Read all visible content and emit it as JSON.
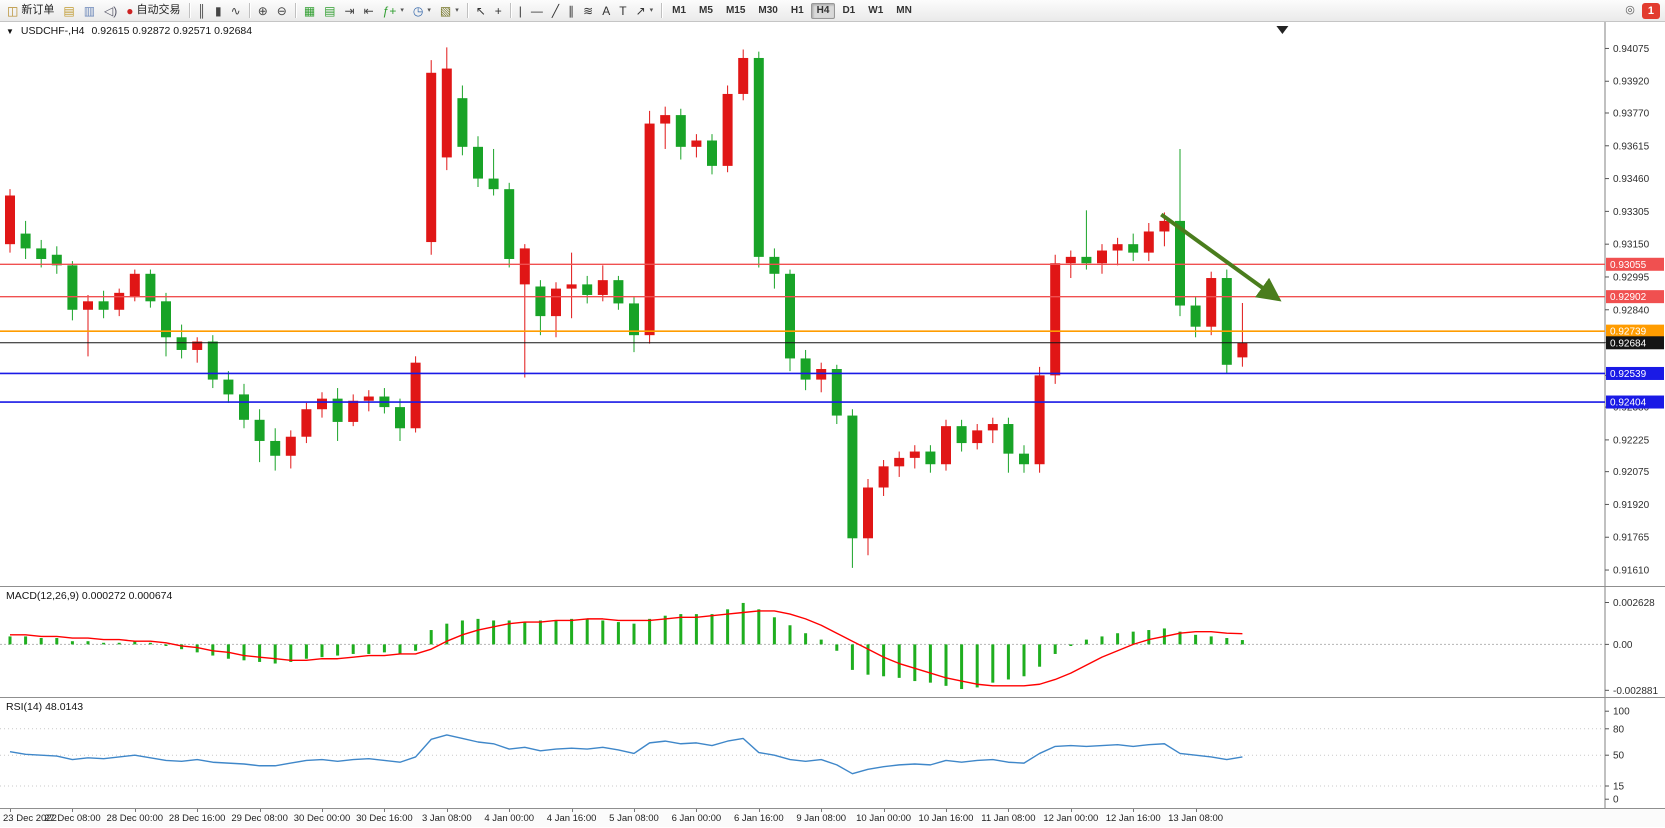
{
  "toolbar": {
    "items": [
      {
        "name": "new-order-button",
        "label": "新订单",
        "glyph": "◫",
        "color": "#b58b2a"
      },
      {
        "name": "new-chart-icon",
        "glyph": "▤",
        "color": "#c09a30"
      },
      {
        "name": "profiles-icon",
        "glyph": "▥",
        "color": "#6a86b8"
      },
      {
        "name": "sound-icon",
        "glyph": "◁)",
        "color": "#556"
      },
      {
        "name": "autotrading-button",
        "label": "自动交易",
        "glyph": "●",
        "color": "#cc2222"
      },
      {
        "type": "sep"
      },
      {
        "name": "bar-chart-button",
        "glyph": "║",
        "color": "#444"
      },
      {
        "name": "candle-chart-button",
        "glyph": "▮",
        "color": "#444"
      },
      {
        "name": "line-chart-button",
        "glyph": "∿",
        "color": "#444"
      },
      {
        "type": "sep"
      },
      {
        "name": "zoom-in-button",
        "glyph": "⊕",
        "color": "#444"
      },
      {
        "name": "zoom-out-button",
        "glyph": "⊖",
        "color": "#444"
      },
      {
        "type": "sep"
      },
      {
        "name": "tile-windows-button",
        "glyph": "▦",
        "color": "#2f9e2f"
      },
      {
        "name": "cascade-windows-button",
        "glyph": "▤",
        "color": "#2f9e2f"
      },
      {
        "name": "auto-scroll-button",
        "glyph": "⇥",
        "color": "#444"
      },
      {
        "name": "chart-shift-button",
        "glyph": "⇤",
        "color": "#444"
      },
      {
        "name": "indicators-button",
        "glyph": "ƒ+",
        "color": "#2f9e2f",
        "dropdown": true
      },
      {
        "name": "periods-button",
        "glyph": "◷",
        "color": "#3366aa",
        "dropdown": true
      },
      {
        "name": "templates-button",
        "glyph": "▧",
        "color": "#77772a",
        "dropdown": true
      },
      {
        "type": "sep"
      },
      {
        "name": "cursor-button",
        "glyph": "↖",
        "color": "#333"
      },
      {
        "name": "crosshair-button",
        "glyph": "+",
        "color": "#333"
      },
      {
        "type": "sep"
      },
      {
        "name": "vertical-line-button",
        "glyph": "|",
        "color": "#333"
      },
      {
        "name": "horizontal-line-button",
        "glyph": "—",
        "color": "#333"
      },
      {
        "name": "trendline-button",
        "glyph": "╱",
        "color": "#333"
      },
      {
        "name": "channel-button",
        "glyph": "∥",
        "color": "#333"
      },
      {
        "name": "fibonacci-button",
        "glyph": "≋",
        "color": "#333"
      },
      {
        "name": "text-button",
        "glyph": "A",
        "color": "#333"
      },
      {
        "name": "label-button",
        "glyph": "T",
        "color": "#333"
      },
      {
        "name": "arrows-button",
        "glyph": "↗",
        "color": "#333",
        "dropdown": true
      },
      {
        "type": "sep"
      }
    ],
    "timeframes": [
      "M1",
      "M5",
      "M15",
      "M30",
      "H1",
      "H4",
      "D1",
      "W1",
      "MN"
    ],
    "active_timeframe": "H4",
    "search_icon_glyph": "◎",
    "notification_count": "1"
  },
  "chart": {
    "symbol_label": "USDCHF-,H4",
    "ohlc_label": "0.92615 0.92872 0.92571 0.92684",
    "macd_label": "MACD(12,26,9) 0.000272 0.000674",
    "rsi_label": "RSI(14) 48.0143"
  },
  "chart_data": {
    "type": "candlestick",
    "symbol": "USDCHF-",
    "timeframe": "H4",
    "colors": {
      "up": "#e01616",
      "down": "#18a327",
      "macd_bar": "#1fae1f",
      "macd_signal": "#ff0000",
      "rsi_line": "#3f87c9"
    },
    "price_axis": {
      "ticks": [
        "0.94075",
        "0.93920",
        "0.93770",
        "0.93615",
        "0.93460",
        "0.93305",
        "0.93150",
        "0.92995",
        "0.92840",
        "0.92685",
        "0.92530",
        "0.92380",
        "0.92225",
        "0.92075",
        "0.91920",
        "0.91765",
        "0.91610"
      ]
    },
    "candles": [
      [
        0.9315,
        0.9341,
        0.9311,
        0.9338
      ],
      [
        0.932,
        0.9326,
        0.9308,
        0.9313
      ],
      [
        0.9313,
        0.9317,
        0.9304,
        0.9308
      ],
      [
        0.931,
        0.9314,
        0.9301,
        0.9305
      ],
      [
        0.9305,
        0.9307,
        0.9279,
        0.9284
      ],
      [
        0.9284,
        0.9291,
        0.9262,
        0.9288
      ],
      [
        0.9288,
        0.9293,
        0.928,
        0.9284
      ],
      [
        0.9284,
        0.9294,
        0.9281,
        0.9292
      ],
      [
        0.929,
        0.9303,
        0.9288,
        0.9301
      ],
      [
        0.9301,
        0.9303,
        0.9285,
        0.9288
      ],
      [
        0.9288,
        0.9292,
        0.9262,
        0.9271
      ],
      [
        0.9271,
        0.9277,
        0.9261,
        0.9265
      ],
      [
        0.9265,
        0.9271,
        0.9259,
        0.9269
      ],
      [
        0.9269,
        0.9272,
        0.9247,
        0.9251
      ],
      [
        0.9251,
        0.9255,
        0.924,
        0.9244
      ],
      [
        0.9244,
        0.9249,
        0.9228,
        0.9232
      ],
      [
        0.9232,
        0.9237,
        0.9212,
        0.9222
      ],
      [
        0.9222,
        0.9228,
        0.9208,
        0.9215
      ],
      [
        0.9215,
        0.9227,
        0.9209,
        0.9224
      ],
      [
        0.9224,
        0.924,
        0.9221,
        0.9237
      ],
      [
        0.9237,
        0.9245,
        0.9233,
        0.9242
      ],
      [
        0.9242,
        0.9247,
        0.9222,
        0.9231
      ],
      [
        0.9231,
        0.9244,
        0.9229,
        0.9241
      ],
      [
        0.9241,
        0.9246,
        0.9236,
        0.9243
      ],
      [
        0.9243,
        0.9247,
        0.9235,
        0.9238
      ],
      [
        0.9238,
        0.9242,
        0.9222,
        0.9228
      ],
      [
        0.9228,
        0.9262,
        0.9226,
        0.9259
      ],
      [
        0.9316,
        0.9402,
        0.931,
        0.9396
      ],
      [
        0.9356,
        0.9408,
        0.935,
        0.9398
      ],
      [
        0.9384,
        0.939,
        0.9357,
        0.9361
      ],
      [
        0.9361,
        0.9366,
        0.9342,
        0.9346
      ],
      [
        0.9346,
        0.936,
        0.9338,
        0.9341
      ],
      [
        0.9341,
        0.9344,
        0.9304,
        0.9308
      ],
      [
        0.9296,
        0.9315,
        0.9252,
        0.9313
      ],
      [
        0.9295,
        0.9298,
        0.9272,
        0.9281
      ],
      [
        0.9281,
        0.9297,
        0.9271,
        0.9294
      ],
      [
        0.9294,
        0.9311,
        0.928,
        0.9296
      ],
      [
        0.9296,
        0.93,
        0.9287,
        0.9291
      ],
      [
        0.9291,
        0.9305,
        0.9288,
        0.9298
      ],
      [
        0.9298,
        0.93,
        0.9284,
        0.9287
      ],
      [
        0.9287,
        0.929,
        0.9264,
        0.9272
      ],
      [
        0.9272,
        0.9378,
        0.9268,
        0.9372
      ],
      [
        0.9372,
        0.938,
        0.936,
        0.9376
      ],
      [
        0.9376,
        0.9379,
        0.9355,
        0.9361
      ],
      [
        0.9361,
        0.9367,
        0.9356,
        0.9364
      ],
      [
        0.9364,
        0.9367,
        0.9348,
        0.9352
      ],
      [
        0.9352,
        0.939,
        0.9349,
        0.9386
      ],
      [
        0.9386,
        0.9407,
        0.9383,
        0.9403
      ],
      [
        0.9403,
        0.9406,
        0.9304,
        0.9309
      ],
      [
        0.9309,
        0.9313,
        0.9294,
        0.9301
      ],
      [
        0.9301,
        0.9303,
        0.9255,
        0.9261
      ],
      [
        0.9261,
        0.9265,
        0.9246,
        0.9251
      ],
      [
        0.9251,
        0.9259,
        0.9245,
        0.9256
      ],
      [
        0.9256,
        0.9258,
        0.923,
        0.9234
      ],
      [
        0.9234,
        0.9237,
        0.9162,
        0.9176
      ],
      [
        0.9176,
        0.9204,
        0.9168,
        0.92
      ],
      [
        0.92,
        0.9213,
        0.9196,
        0.921
      ],
      [
        0.921,
        0.9217,
        0.9205,
        0.9214
      ],
      [
        0.9214,
        0.922,
        0.9209,
        0.9217
      ],
      [
        0.9217,
        0.922,
        0.9207,
        0.9211
      ],
      [
        0.9211,
        0.9232,
        0.9208,
        0.9229
      ],
      [
        0.9229,
        0.9232,
        0.9217,
        0.9221
      ],
      [
        0.9221,
        0.923,
        0.9218,
        0.9227
      ],
      [
        0.9227,
        0.9233,
        0.9221,
        0.923
      ],
      [
        0.923,
        0.9233,
        0.9207,
        0.9216
      ],
      [
        0.9216,
        0.922,
        0.9207,
        0.9211
      ],
      [
        0.9211,
        0.9257,
        0.9207,
        0.9253
      ],
      [
        0.9253,
        0.931,
        0.9249,
        0.9306
      ],
      [
        0.9306,
        0.9312,
        0.9299,
        0.9309
      ],
      [
        0.9309,
        0.9331,
        0.9303,
        0.9306
      ],
      [
        0.9306,
        0.9315,
        0.9301,
        0.9312
      ],
      [
        0.9312,
        0.9318,
        0.9305,
        0.9315
      ],
      [
        0.9315,
        0.932,
        0.9307,
        0.9311
      ],
      [
        0.9311,
        0.9325,
        0.9307,
        0.9321
      ],
      [
        0.9321,
        0.933,
        0.9314,
        0.9326
      ],
      [
        0.9326,
        0.936,
        0.9281,
        0.9286
      ],
      [
        0.9286,
        0.929,
        0.9271,
        0.9276
      ],
      [
        0.9276,
        0.9302,
        0.9272,
        0.9299
      ],
      [
        0.9299,
        0.9303,
        0.9254,
        0.9258
      ],
      [
        0.92615,
        0.92872,
        0.92571,
        0.92684
      ]
    ],
    "levels": [
      {
        "price": "0.93055",
        "value": 0.93055,
        "color": "#f05050",
        "width": 1.4
      },
      {
        "price": "0.92902",
        "value": 0.92902,
        "color": "#f05050",
        "width": 1.4
      },
      {
        "price": "0.92739",
        "value": 0.92739,
        "color": "#ff9c00",
        "width": 1.6
      },
      {
        "price": "0.92539",
        "value": 0.92539,
        "color": "#1a1ae6",
        "width": 1.6
      },
      {
        "price": "0.92404",
        "value": 0.92404,
        "color": "#1a1ae6",
        "width": 1.6
      }
    ],
    "current_price": {
      "price": "0.92684",
      "value": 0.92684,
      "color": "#151515"
    },
    "annotation_arrow": {
      "from_index": 73.8,
      "from_price": 0.9329,
      "to_index": 81.3,
      "to_price": 0.9289,
      "color": "#4a7d1d",
      "width": 4
    },
    "time_labels": [
      "23 Dec 2022",
      "27 Dec 08:00",
      "28 Dec 00:00",
      "28 Dec 16:00",
      "29 Dec 08:00",
      "30 Dec 00:00",
      "30 Dec 16:00",
      "3 Jan 08:00",
      "4 Jan 00:00",
      "4 Jan 16:00",
      "5 Jan 08:00",
      "6 Jan 00:00",
      "6 Jan 16:00",
      "9 Jan 08:00",
      "10 Jan 00:00",
      "10 Jan 16:00",
      "11 Jan 08:00",
      "12 Jan 00:00",
      "12 Jan 16:00",
      "13 Jan 08:00"
    ],
    "macd": {
      "histogram": [
        0.0005,
        0.0005,
        0.0004,
        0.0004,
        0.0002,
        0.0002,
        0.0001,
        0.0001,
        0.0002,
        0.0001,
        -0.0001,
        -0.0003,
        -0.0005,
        -0.0007,
        -0.0009,
        -0.001,
        -0.0011,
        -0.0012,
        -0.0011,
        -0.0009,
        -0.0008,
        -0.0007,
        -0.0006,
        -0.0006,
        -0.0005,
        -0.0006,
        -0.0004,
        0.0009,
        0.0013,
        0.0015,
        0.0016,
        0.0015,
        0.0015,
        0.0014,
        0.0015,
        0.0015,
        0.0016,
        0.0016,
        0.0015,
        0.0014,
        0.0013,
        0.0016,
        0.0018,
        0.0019,
        0.0019,
        0.0019,
        0.0022,
        0.0026,
        0.0022,
        0.0017,
        0.0012,
        0.0007,
        0.0003,
        -0.0004,
        -0.0016,
        -0.0019,
        -0.002,
        -0.0021,
        -0.0023,
        -0.0024,
        -0.0026,
        -0.0028,
        -0.0027,
        -0.0024,
        -0.0022,
        -0.002,
        -0.0014,
        -0.0006,
        -0.0001,
        0.0003,
        0.0005,
        0.0007,
        0.0008,
        0.0009,
        0.001,
        0.0008,
        0.0006,
        0.0005,
        0.0004,
        0.000272
      ],
      "signal": [
        0.0006,
        0.0006,
        0.0005,
        0.0005,
        0.0004,
        0.0004,
        0.0003,
        0.0003,
        0.0002,
        0.0002,
        0.0001,
        -0.0001,
        -0.0002,
        -0.0004,
        -0.0005,
        -0.0007,
        -0.0008,
        -0.0009,
        -0.001,
        -0.001,
        -0.0009,
        -0.0009,
        -0.0008,
        -0.0007,
        -0.0007,
        -0.0006,
        -0.0006,
        -0.0003,
        0.0002,
        0.0006,
        0.0009,
        0.0011,
        0.0013,
        0.0014,
        0.0014,
        0.0015,
        0.0015,
        0.0016,
        0.0016,
        0.0015,
        0.0015,
        0.0015,
        0.0016,
        0.0017,
        0.0017,
        0.0018,
        0.0019,
        0.002,
        0.0021,
        0.0021,
        0.0019,
        0.0016,
        0.0012,
        0.0007,
        0.0002,
        -0.0003,
        -0.0008,
        -0.0012,
        -0.0015,
        -0.0018,
        -0.0021,
        -0.0023,
        -0.0025,
        -0.0026,
        -0.0026,
        -0.0026,
        -0.0025,
        -0.0022,
        -0.0018,
        -0.0013,
        -0.0008,
        -0.0004,
        0.0,
        0.0003,
        0.0005,
        0.0007,
        0.0008,
        0.0008,
        0.0007,
        0.000674
      ],
      "axis_ticks": [
        {
          "label": "0.002628",
          "value": 0.002628
        },
        {
          "label": "0.00",
          "value": 0
        },
        {
          "label": "-0.002881",
          "value": -0.002881
        }
      ]
    },
    "rsi": {
      "values": [
        54,
        51,
        50,
        49,
        45,
        47,
        46,
        48,
        50,
        47,
        44,
        43,
        45,
        42,
        41,
        40,
        38,
        38,
        41,
        44,
        45,
        43,
        45,
        46,
        44,
        42,
        48,
        68,
        73,
        69,
        65,
        63,
        57,
        59,
        55,
        57,
        58,
        57,
        59,
        56,
        52,
        64,
        66,
        63,
        64,
        61,
        66,
        69,
        53,
        50,
        45,
        43,
        45,
        39,
        29,
        34,
        37,
        39,
        40,
        39,
        44,
        42,
        44,
        45,
        42,
        41,
        52,
        60,
        61,
        60,
        61,
        62,
        60,
        62,
        63,
        52,
        50,
        48,
        45,
        48.0143
      ],
      "levels": [
        80,
        50,
        15
      ],
      "axis_ticks": [
        {
          "label": "100",
          "value": 100
        },
        {
          "label": "80",
          "value": 80
        },
        {
          "label": "50",
          "value": 50
        },
        {
          "label": "15",
          "value": 15
        },
        {
          "label": "0",
          "value": 0
        }
      ]
    }
  }
}
